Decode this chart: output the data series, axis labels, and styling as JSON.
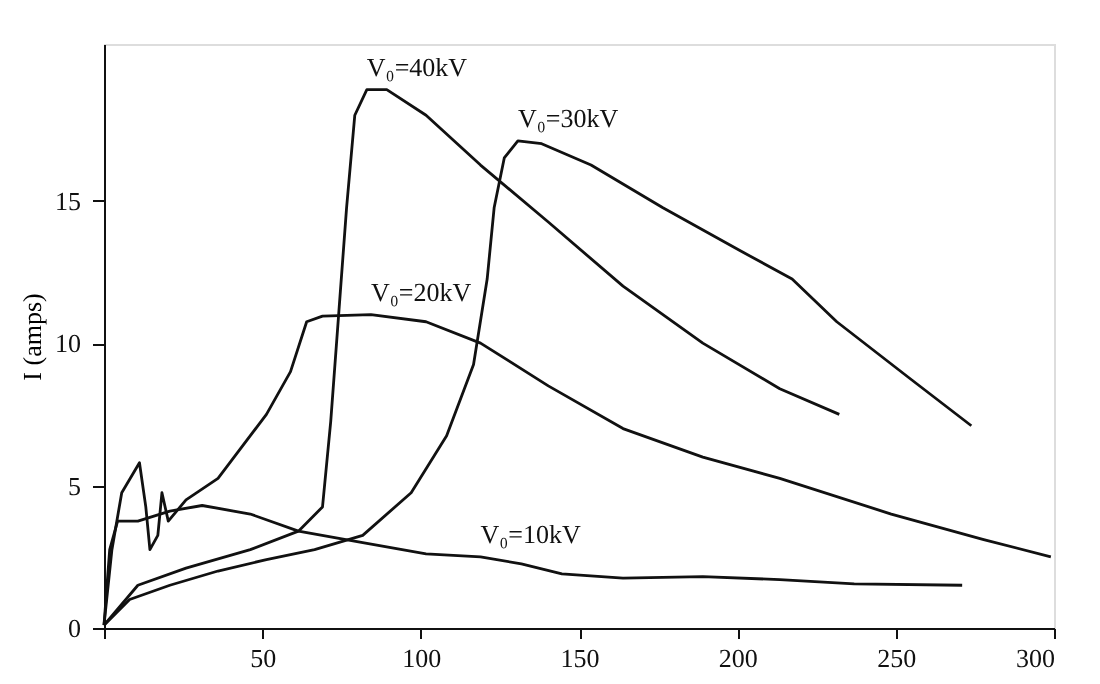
{
  "chart_data": {
    "type": "line",
    "ylabel": "I (amps)",
    "xlim": [
      0,
      300
    ],
    "xticks": [
      {
        "value": 0,
        "label": null
      },
      50,
      100,
      150,
      200,
      250,
      300
    ],
    "ylim": [
      0,
      20.5
    ],
    "yticks": [
      0,
      5,
      10,
      15
    ],
    "grid": false,
    "legend": false,
    "marker": "none",
    "line_style": "solid",
    "series": [
      {
        "color": "#111111",
        "x": [
          0,
          10.7,
          25.9,
          46.2,
          61.4,
          69,
          71.6,
          74.1,
          76.6,
          79.2,
          83,
          89.3,
          101.7,
          118.9,
          140.3,
          163.9,
          189.1,
          213.4,
          232.2
        ],
        "values": [
          0.1,
          1.5,
          2.1,
          2.75,
          3.4,
          4.25,
          7.25,
          11,
          14.75,
          18,
          18.9,
          18.9,
          18,
          16.25,
          14.25,
          12,
          10,
          8.4,
          7.5
        ]
      },
      {
        "color": "#111111",
        "x": [
          0,
          8.1,
          20.8,
          36,
          51.3,
          66.5,
          81.7,
          97,
          108.2,
          116.7,
          121,
          123.2,
          126.4,
          130.7,
          138.2,
          153.8,
          176.5,
          200.8,
          217.3,
          231.4,
          254.6,
          273.9
        ],
        "values": [
          0.1,
          1,
          1.5,
          2,
          2.4,
          2.75,
          3.25,
          4.75,
          6.75,
          9.25,
          12.25,
          14.75,
          16.5,
          17.1,
          17,
          16.25,
          14.75,
          13.25,
          12.25,
          10.75,
          8.75,
          7.1
        ]
      },
      {
        "color": "#111111",
        "x": [
          0,
          2.5,
          5.6,
          11.2,
          13.2,
          14.5,
          17,
          18.3,
          20.3,
          25.9,
          36,
          51.3,
          58.9,
          64,
          69,
          84.3,
          101.7,
          118.9,
          140.3,
          163.9,
          189.1,
          213.4,
          248.6,
          277.8,
          299
        ],
        "values": [
          0.1,
          2.75,
          4.75,
          5.8,
          4.25,
          2.75,
          3.25,
          4.75,
          3.75,
          4.5,
          5.25,
          7.5,
          9,
          10.75,
          10.95,
          11,
          10.75,
          10,
          8.5,
          7,
          6,
          5.25,
          4,
          3.1,
          2.5
        ]
      },
      {
        "color": "#111111",
        "x": [
          0,
          1.8,
          4.3,
          10.7,
          20.8,
          31,
          46.2,
          61.4,
          81.7,
          101.7,
          118.9,
          131.8,
          144.6,
          163.9,
          189.1,
          213.4,
          236.9,
          271
        ],
        "values": [
          0.1,
          2.75,
          3.75,
          3.75,
          4.1,
          4.3,
          4,
          3.4,
          3,
          2.6,
          2.5,
          2.25,
          1.9,
          1.75,
          1.8,
          1.7,
          1.55,
          1.5
        ]
      }
    ],
    "annotations": [
      {
        "text": "V₀=40kV",
        "x": 83,
        "y": 18.9
      },
      {
        "text": "V₀=30kV",
        "x": 130.7,
        "y": 17.1
      },
      {
        "text": "V₀=20kV",
        "x": 84.3,
        "y": 11
      },
      {
        "text": "V₀=10kV",
        "x": 118.9,
        "y": 2.5
      }
    ]
  }
}
